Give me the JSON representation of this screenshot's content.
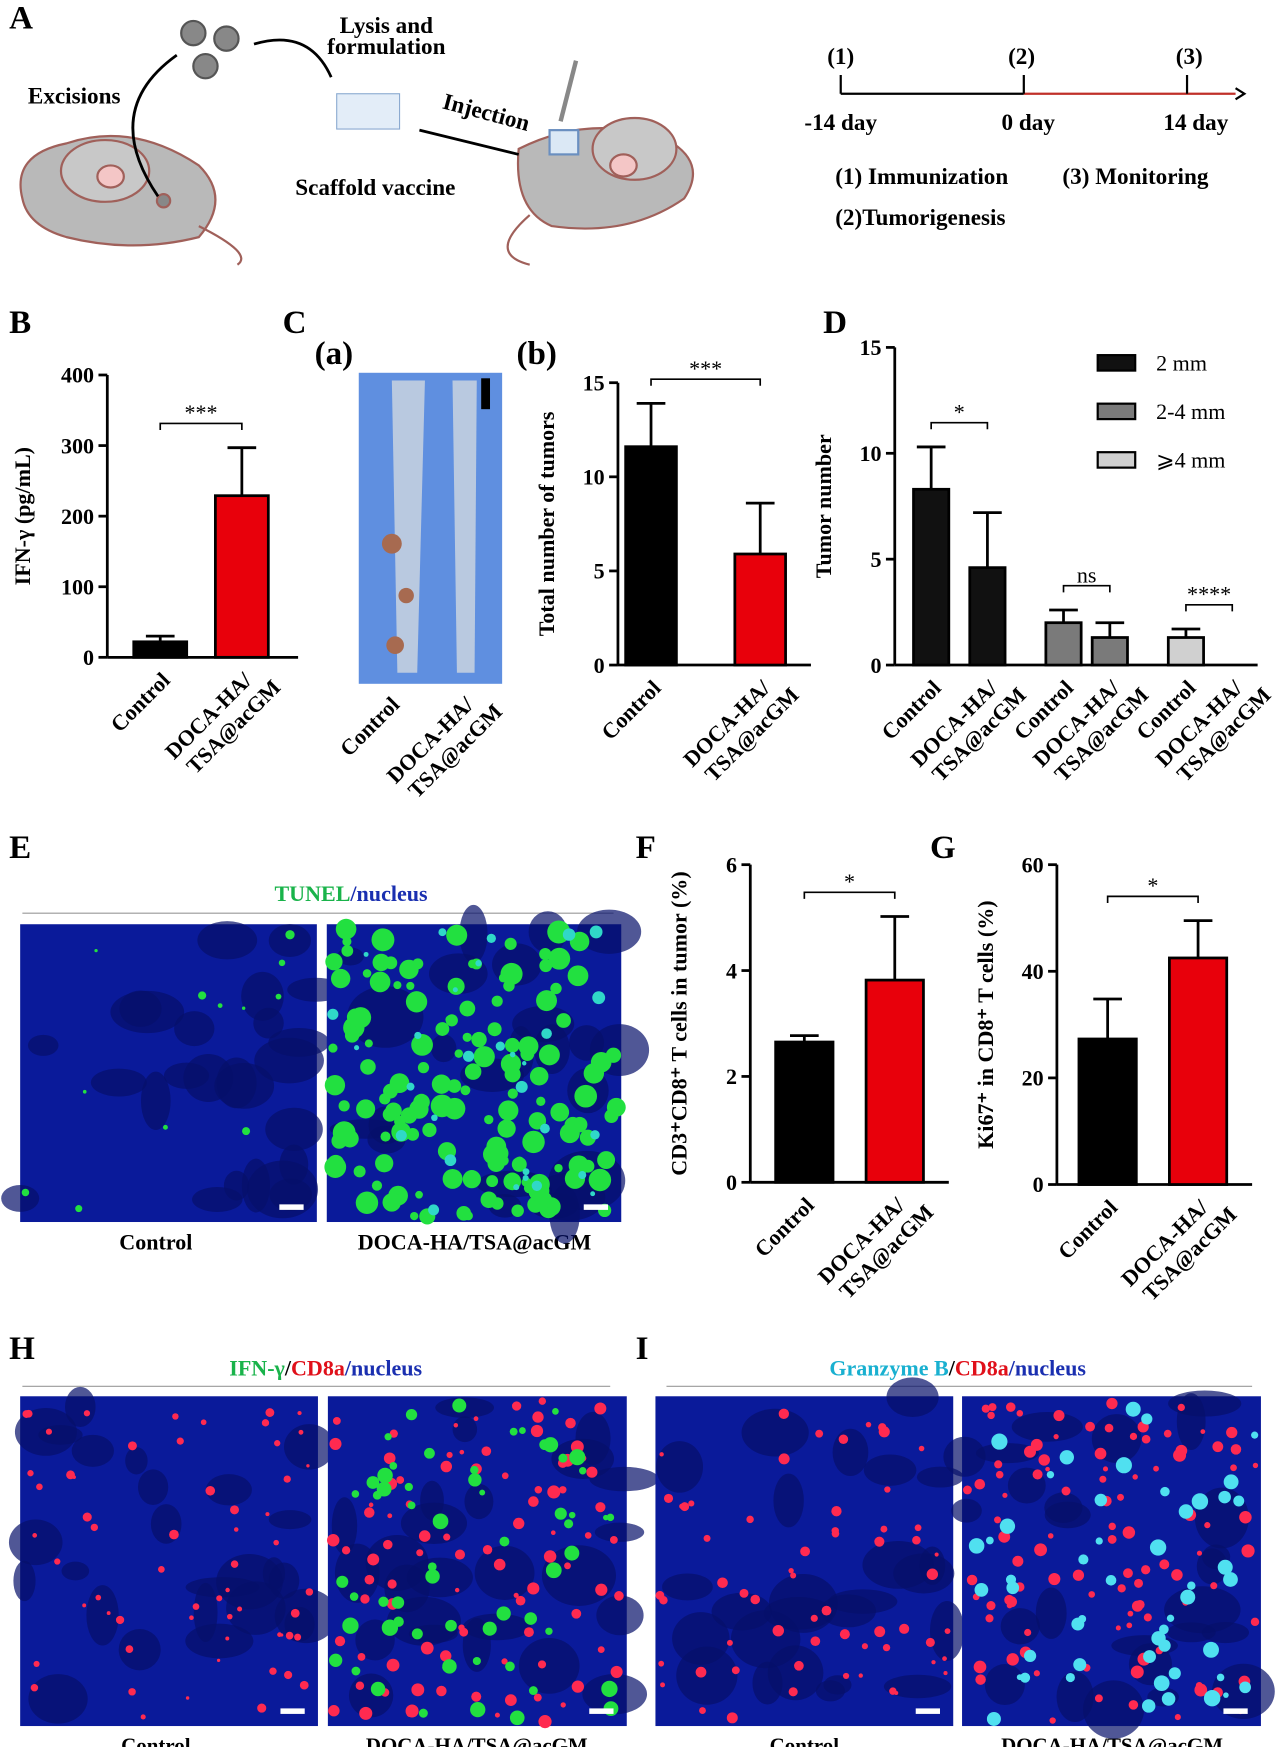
{
  "panel_labels": [
    "A",
    "B",
    "C",
    "(a)",
    "(b)",
    "D",
    "E",
    "F",
    "G",
    "H",
    "I"
  ],
  "schematic": {
    "excisions": "Excisions",
    "lysis": [
      "Lysis and",
      "formulation"
    ],
    "scaffold": "Scaffold vaccine",
    "injection": "Injection",
    "timeline": {
      "points": [
        "(1)",
        "(2)",
        "(3)"
      ],
      "days": [
        "-14 day",
        "0 day",
        "14 day"
      ],
      "legend": [
        "(1) Immunization",
        "(3) Monitoring",
        "(2)Tumorigenesis"
      ]
    }
  },
  "photo": {
    "categories": [
      "Control",
      "DOCA-HA/TSA@acGM"
    ]
  },
  "images": {
    "E": {
      "title": [
        "TUNEL",
        "/nucleus"
      ],
      "labels": [
        "Control",
        "DOCA-HA/TSA@acGM"
      ]
    },
    "H": {
      "title": [
        "IFN-γ",
        "/",
        "CD8a",
        "/nucleus"
      ],
      "labels": [
        "Control",
        "DOCA-HA/TSA@acGM"
      ]
    },
    "I": {
      "title": [
        "Granzyme B",
        "/",
        "CD8a",
        "/nucleus"
      ],
      "labels": [
        "Control",
        "DOCA-HA/TSA@acGM"
      ]
    }
  },
  "chart_data": [
    {
      "type": "bar",
      "ylabel": "IFN-γ (pg/mL)",
      "categories": [
        "Control",
        "DOCA-HA/TSA@acGM"
      ],
      "values": [
        22,
        229
      ],
      "errors": [
        8,
        68
      ],
      "colors": [
        "#000000",
        "#e8000b"
      ],
      "ylim": [
        0,
        400
      ],
      "yticks": [
        0,
        100,
        200,
        300,
        400
      ],
      "significance": "***"
    },
    {
      "type": "bar",
      "ylabel": "Total number of tumors",
      "categories": [
        "Control",
        "DOCA-HA/TSA@acGM"
      ],
      "values": [
        11.6,
        5.9
      ],
      "errors": [
        2.3,
        2.7
      ],
      "colors": [
        "#000000",
        "#e8000b"
      ],
      "ylim": [
        0,
        15
      ],
      "yticks": [
        0,
        5,
        10,
        15
      ],
      "significance": "***"
    },
    {
      "type": "grouped_bar",
      "ylabel": "Tumor number",
      "categories": [
        "Control",
        "DOCA-HA/TSA@acGM"
      ],
      "series": [
        {
          "name": "2 mm",
          "color": "#111111",
          "values": [
            8.3,
            4.6
          ],
          "errors": [
            2.0,
            2.6
          ],
          "significance": "*"
        },
        {
          "name": "2-4 mm",
          "color": "#7a7a7a",
          "values": [
            2.0,
            1.3
          ],
          "errors": [
            0.6,
            0.7
          ],
          "significance": "ns"
        },
        {
          "name": "⩾4 mm",
          "color": "#d0d0d0",
          "values": [
            1.3,
            0
          ],
          "errors": [
            0.4,
            null
          ],
          "significance": "****"
        }
      ],
      "ylim": [
        0,
        15
      ],
      "yticks": [
        0,
        5,
        10,
        15
      ],
      "legend": "upper right"
    },
    {
      "type": "bar",
      "ylabel": "CD3⁺CD8⁺ T cells in tumor (%)",
      "categories": [
        "Control",
        "DOCA-HA/TSA@acGM"
      ],
      "values": [
        2.65,
        3.82
      ],
      "errors": [
        0.12,
        1.2
      ],
      "colors": [
        "#000000",
        "#e8000b"
      ],
      "ylim": [
        0,
        6
      ],
      "yticks": [
        0,
        2,
        4,
        6
      ],
      "significance": "*"
    },
    {
      "type": "bar",
      "ylabel": "Ki67⁺ in CD8⁺ T cells (%)",
      "categories": [
        "Control",
        "DOCA-HA/TSA@acGM"
      ],
      "values": [
        27.3,
        42.5
      ],
      "errors": [
        7.5,
        7.0
      ],
      "colors": [
        "#000000",
        "#e8000b"
      ],
      "ylim": [
        0,
        60
      ],
      "yticks": [
        0,
        20,
        40,
        60
      ],
      "significance": "*"
    }
  ]
}
